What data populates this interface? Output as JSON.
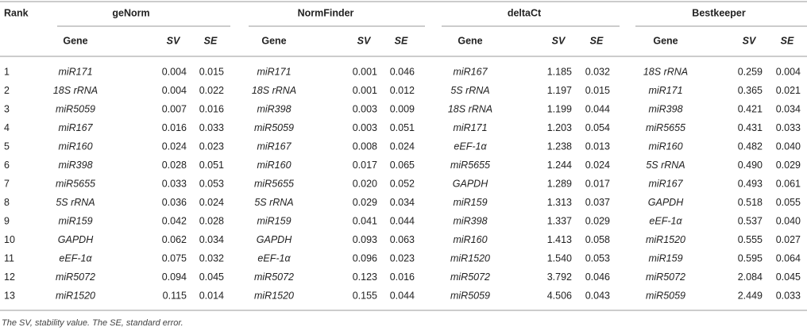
{
  "table": {
    "header": {
      "rank": "Rank",
      "groups": [
        {
          "name": "geNorm",
          "columns": [
            "Gene",
            "SV",
            "SE"
          ]
        },
        {
          "name": "NormFinder",
          "columns": [
            "Gene",
            "SV",
            "SE"
          ]
        },
        {
          "name": "deltaCt",
          "columns": [
            "Gene",
            "SV",
            "SE"
          ]
        },
        {
          "name": "Bestkeeper",
          "columns": [
            "Gene",
            "SV",
            "SE"
          ]
        }
      ]
    },
    "rows": [
      [
        "1",
        "miR171",
        "0.004",
        "0.015",
        "miR171",
        "0.001",
        "0.046",
        "miR167",
        "1.185",
        "0.032",
        "18S rRNA",
        "0.259",
        "0.004"
      ],
      [
        "2",
        "18S rRNA",
        "0.004",
        "0.022",
        "18S rRNA",
        "0.001",
        "0.012",
        "5S rRNA",
        "1.197",
        "0.015",
        "miR171",
        "0.365",
        "0.021"
      ],
      [
        "3",
        "miR5059",
        "0.007",
        "0.016",
        "miR398",
        "0.003",
        "0.009",
        "18S rRNA",
        "1.199",
        "0.044",
        "miR398",
        "0.421",
        "0.034"
      ],
      [
        "4",
        "miR167",
        "0.016",
        "0.033",
        "miR5059",
        "0.003",
        "0.051",
        "miR171",
        "1.203",
        "0.054",
        "miR5655",
        "0.431",
        "0.033"
      ],
      [
        "5",
        "miR160",
        "0.024",
        "0.023",
        "miR167",
        "0.008",
        "0.024",
        "eEF-1α",
        "1.238",
        "0.013",
        "miR160",
        "0.482",
        "0.040"
      ],
      [
        "6",
        "miR398",
        "0.028",
        "0.051",
        "miR160",
        "0.017",
        "0.065",
        "miR5655",
        "1.244",
        "0.024",
        "5S rRNA",
        "0.490",
        "0.029"
      ],
      [
        "7",
        "miR5655",
        "0.033",
        "0.053",
        "miR5655",
        "0.020",
        "0.052",
        "GAPDH",
        "1.289",
        "0.017",
        "miR167",
        "0.493",
        "0.061"
      ],
      [
        "8",
        "5S rRNA",
        "0.036",
        "0.024",
        "5S rRNA",
        "0.029",
        "0.034",
        "miR159",
        "1.313",
        "0.037",
        "GAPDH",
        "0.518",
        "0.055"
      ],
      [
        "9",
        "miR159",
        "0.042",
        "0.028",
        "miR159",
        "0.041",
        "0.044",
        "miR398",
        "1.337",
        "0.029",
        "eEF-1α",
        "0.537",
        "0.040"
      ],
      [
        "10",
        "GAPDH",
        "0.062",
        "0.034",
        "GAPDH",
        "0.093",
        "0.063",
        "miR160",
        "1.413",
        "0.058",
        "miR1520",
        "0.555",
        "0.027"
      ],
      [
        "11",
        "eEF-1α",
        "0.075",
        "0.032",
        "eEF-1α",
        "0.096",
        "0.023",
        "miR1520",
        "1.540",
        "0.053",
        "miR159",
        "0.595",
        "0.064"
      ],
      [
        "12",
        "miR5072",
        "0.094",
        "0.045",
        "miR5072",
        "0.123",
        "0.016",
        "miR5072",
        "3.792",
        "0.046",
        "miR5072",
        "2.084",
        "0.045"
      ],
      [
        "13",
        "miR1520",
        "0.115",
        "0.014",
        "miR1520",
        "0.155",
        "0.044",
        "miR5059",
        "4.506",
        "0.043",
        "miR5059",
        "2.449",
        "0.033"
      ]
    ],
    "footnote": "The SV, stability value. The SE, standard error."
  }
}
